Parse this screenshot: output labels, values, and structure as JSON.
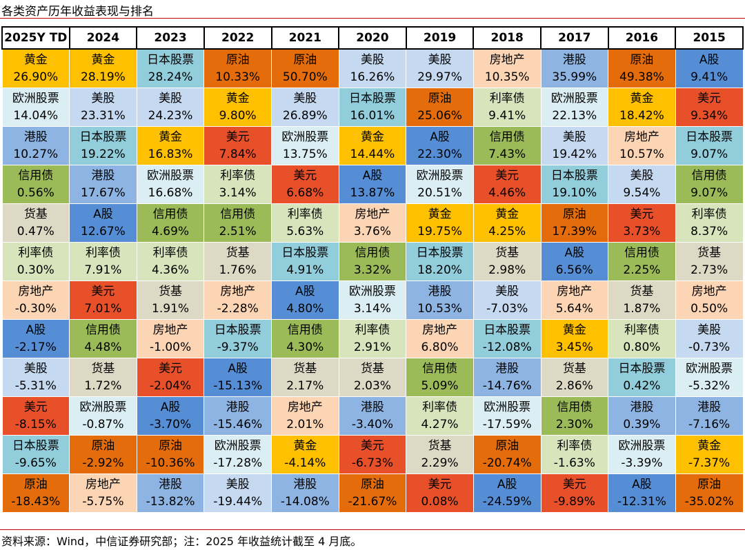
{
  "header": {
    "title": "各类资产历年收益表现与排名"
  },
  "table": {
    "columns": [
      "2025Y TD",
      "2024",
      "2023",
      "2022",
      "2021",
      "2020",
      "2019",
      "2018",
      "2017",
      "2016",
      "2015"
    ],
    "rows": [
      [
        [
          "黄金",
          "26.90%"
        ],
        [
          "黄金",
          "28.19%"
        ],
        [
          "日本股票",
          "28.24%"
        ],
        [
          "原油",
          "10.33%"
        ],
        [
          "原油",
          "50.70%"
        ],
        [
          "美股",
          "16.26%"
        ],
        [
          "美股",
          "29.97%"
        ],
        [
          "房地产",
          "10.35%"
        ],
        [
          "港股",
          "35.99%"
        ],
        [
          "原油",
          "49.38%"
        ],
        [
          "A股",
          "9.41%"
        ]
      ],
      [
        [
          "欧洲股票",
          "14.04%"
        ],
        [
          "美股",
          "23.31%"
        ],
        [
          "美股",
          "24.23%"
        ],
        [
          "黄金",
          "9.80%"
        ],
        [
          "美股",
          "26.89%"
        ],
        [
          "日本股票",
          "16.01%"
        ],
        [
          "原油",
          "25.06%"
        ],
        [
          "利率债",
          "9.41%"
        ],
        [
          "欧洲股票",
          "22.13%"
        ],
        [
          "黄金",
          "18.42%"
        ],
        [
          "美元",
          "9.34%"
        ]
      ],
      [
        [
          "港股",
          "10.27%"
        ],
        [
          "日本股票",
          "19.22%"
        ],
        [
          "黄金",
          "16.83%"
        ],
        [
          "美元",
          "7.84%"
        ],
        [
          "欧洲股票",
          "13.75%"
        ],
        [
          "黄金",
          "14.44%"
        ],
        [
          "A股",
          "22.30%"
        ],
        [
          "信用债",
          "7.43%"
        ],
        [
          "美股",
          "19.42%"
        ],
        [
          "房地产",
          "10.57%"
        ],
        [
          "日本股票",
          "9.07%"
        ]
      ],
      [
        [
          "信用债",
          "0.56%"
        ],
        [
          "港股",
          "17.67%"
        ],
        [
          "欧洲股票",
          "16.68%"
        ],
        [
          "利率债",
          "3.14%"
        ],
        [
          "美元",
          "6.68%"
        ],
        [
          "A股",
          "13.87%"
        ],
        [
          "欧洲股票",
          "20.51%"
        ],
        [
          "美元",
          "4.46%"
        ],
        [
          "日本股票",
          "19.10%"
        ],
        [
          "美股",
          "9.54%"
        ],
        [
          "信用债",
          "9.07%"
        ]
      ],
      [
        [
          "货基",
          "0.47%"
        ],
        [
          "A股",
          "12.67%"
        ],
        [
          "信用债",
          "4.69%"
        ],
        [
          "信用债",
          "2.51%"
        ],
        [
          "利率债",
          "5.63%"
        ],
        [
          "房地产",
          "3.76%"
        ],
        [
          "黄金",
          "19.75%"
        ],
        [
          "黄金",
          "4.25%"
        ],
        [
          "原油",
          "17.39%"
        ],
        [
          "美元",
          "3.73%"
        ],
        [
          "利率债",
          "8.37%"
        ]
      ],
      [
        [
          "利率债",
          "0.30%"
        ],
        [
          "利率债",
          "7.91%"
        ],
        [
          "利率债",
          "4.36%"
        ],
        [
          "货基",
          "1.76%"
        ],
        [
          "日本股票",
          "4.91%"
        ],
        [
          "信用债",
          "3.32%"
        ],
        [
          "日本股票",
          "18.20%"
        ],
        [
          "货基",
          "2.98%"
        ],
        [
          "A股",
          "6.56%"
        ],
        [
          "信用债",
          "2.25%"
        ],
        [
          "货基",
          "2.73%"
        ]
      ],
      [
        [
          "房地产",
          "-0.30%"
        ],
        [
          "美元",
          "7.01%"
        ],
        [
          "货基",
          "1.91%"
        ],
        [
          "房地产",
          "-2.28%"
        ],
        [
          "A股",
          "4.80%"
        ],
        [
          "欧洲股票",
          "3.14%"
        ],
        [
          "港股",
          "10.53%"
        ],
        [
          "美股",
          "-7.03%"
        ],
        [
          "房地产",
          "5.64%"
        ],
        [
          "货基",
          "1.87%"
        ],
        [
          "房地产",
          "0.50%"
        ]
      ],
      [
        [
          "A股",
          "-2.17%"
        ],
        [
          "信用债",
          "4.48%"
        ],
        [
          "房地产",
          "-1.00%"
        ],
        [
          "日本股票",
          "-9.37%"
        ],
        [
          "信用债",
          "4.30%"
        ],
        [
          "利率债",
          "2.91%"
        ],
        [
          "房地产",
          "6.80%"
        ],
        [
          "日本股票",
          "-12.08%"
        ],
        [
          "黄金",
          "3.45%"
        ],
        [
          "利率债",
          "0.80%"
        ],
        [
          "美股",
          "-0.73%"
        ]
      ],
      [
        [
          "美股",
          "-5.31%"
        ],
        [
          "货基",
          "1.72%"
        ],
        [
          "美元",
          "-2.04%"
        ],
        [
          "A股",
          "-15.13%"
        ],
        [
          "货基",
          "2.17%"
        ],
        [
          "货基",
          "2.03%"
        ],
        [
          "信用债",
          "5.09%"
        ],
        [
          "港股",
          "-14.76%"
        ],
        [
          "货基",
          "2.86%"
        ],
        [
          "日本股票",
          "0.42%"
        ],
        [
          "欧洲股票",
          "-5.32%"
        ]
      ],
      [
        [
          "美元",
          "-8.15%"
        ],
        [
          "欧洲股票",
          "-0.87%"
        ],
        [
          "A股",
          "-3.70%"
        ],
        [
          "港股",
          "-15.46%"
        ],
        [
          "房地产",
          "2.01%"
        ],
        [
          "港股",
          "-3.40%"
        ],
        [
          "利率债",
          "4.27%"
        ],
        [
          "欧洲股票",
          "-17.59%"
        ],
        [
          "信用债",
          "2.30%"
        ],
        [
          "港股",
          "0.39%"
        ],
        [
          "港股",
          "-7.16%"
        ]
      ],
      [
        [
          "日本股票",
          "-9.65%"
        ],
        [
          "原油",
          "-2.92%"
        ],
        [
          "原油",
          "-10.36%"
        ],
        [
          "欧洲股票",
          "-17.28%"
        ],
        [
          "黄金",
          "-4.14%"
        ],
        [
          "美元",
          "-6.73%"
        ],
        [
          "货基",
          "2.29%"
        ],
        [
          "原油",
          "-20.74%"
        ],
        [
          "利率债",
          "-1.63%"
        ],
        [
          "欧洲股票",
          "-3.39%"
        ],
        [
          "黄金",
          "-7.37%"
        ]
      ],
      [
        [
          "原油",
          "-18.43%"
        ],
        [
          "房地产",
          "-5.75%"
        ],
        [
          "港股",
          "-13.82%"
        ],
        [
          "美股",
          "-19.44%"
        ],
        [
          "港股",
          "-14.08%"
        ],
        [
          "原油",
          "-21.67%"
        ],
        [
          "美元",
          "0.08%"
        ],
        [
          "A股",
          "-24.59%"
        ],
        [
          "美元",
          "-9.89%"
        ],
        [
          "A股",
          "-12.31%"
        ],
        [
          "原油",
          "-35.02%"
        ]
      ]
    ],
    "asset_colors": {
      "黄金": "#ffc000",
      "日本股票": "#92cddc",
      "原油": "#e46c0a",
      "美股": "#c5d9f1",
      "房地产": "#fcd5b4",
      "港股": "#8db4e2",
      "A股": "#558ed5",
      "欧洲股票": "#daeef3",
      "美元": "#e8502a",
      "利率债": "#d8e4bc",
      "信用债": "#9bbb59",
      "货基": "#ddd9c4"
    }
  },
  "footer": {
    "source": "资料来源：Wind，中信证券研究部；注：2025 年收益统计截至 4 月底。"
  }
}
